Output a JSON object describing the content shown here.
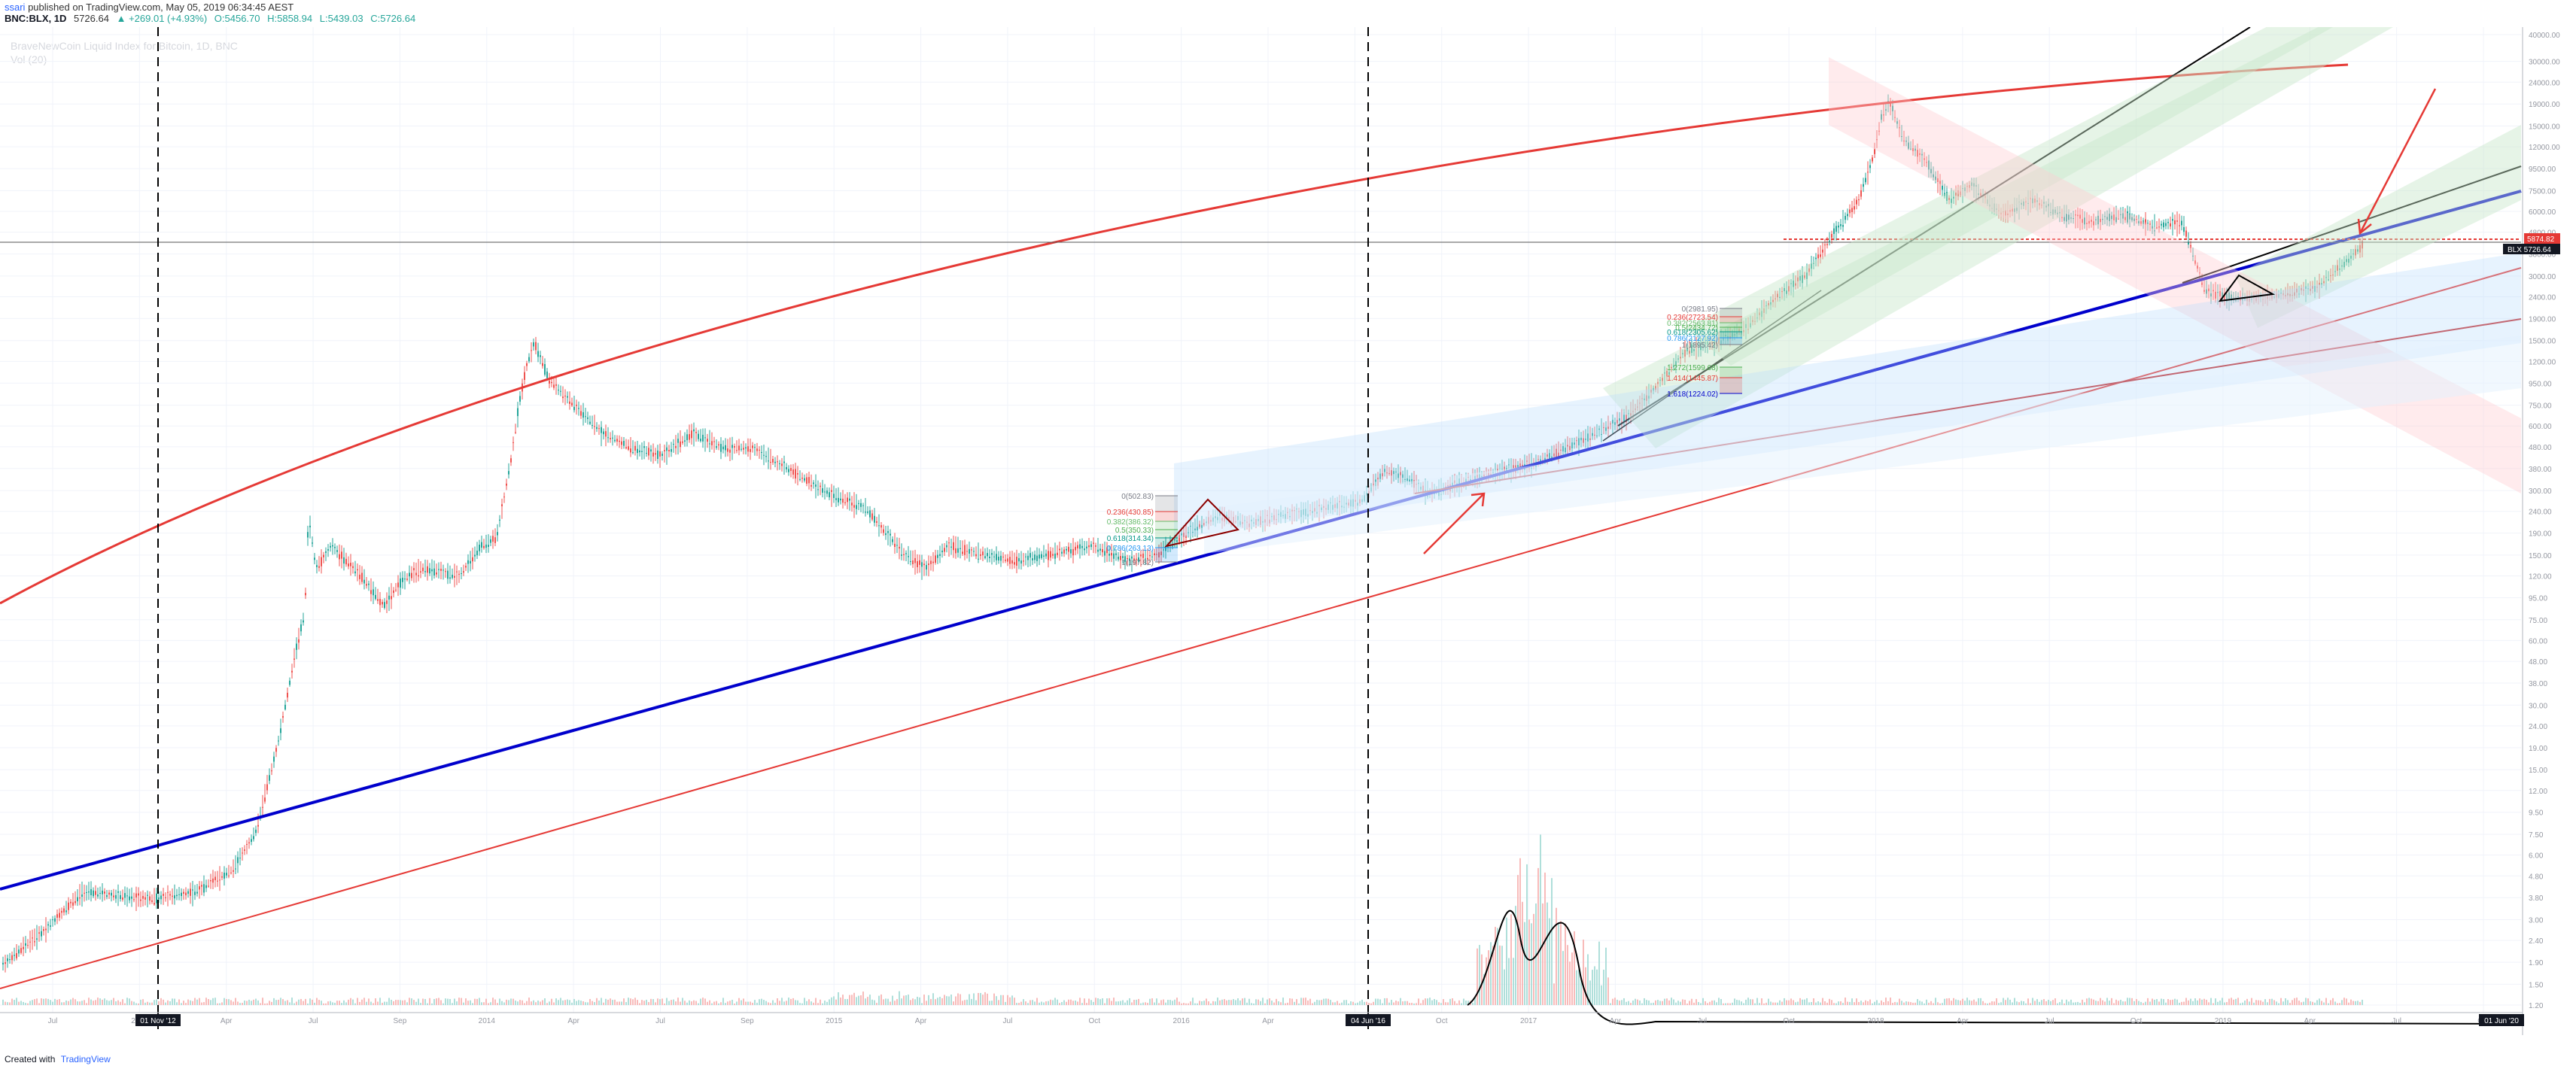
{
  "header": {
    "author": "ssari",
    "published": "published on TradingView.com, May 05, 2019 06:34:45 AEST",
    "symbol": "BNC:BLX, 1D",
    "last": "5726.64",
    "change": "▲ +269.01 (+4.93%)",
    "open": "O:5456.70",
    "high": "H:5858.94",
    "low": "L:5439.03",
    "close": "C:5726.64"
  },
  "watermark": {
    "line1": "BraveNewCoin Liquid Index for Bitcoin, 1D, BNC",
    "line2": "Vol (20)"
  },
  "footer": {
    "created": "Created with",
    "brand": "TradingView"
  },
  "colors": {
    "up": "#26a69a",
    "down": "#ef5350",
    "blue_line": "#0000cc",
    "red_line": "#e53935",
    "accent": "#2962ff"
  },
  "chart_data": {
    "type": "candlestick",
    "scale": "log",
    "grid": true,
    "y_ticks": [
      "40000.00",
      "30000.00",
      "24000.00",
      "19000.00",
      "15000.00",
      "12000.00",
      "9500.00",
      "7500.00",
      "6000.00",
      "4800.00",
      "3800.00",
      "3000.00",
      "2400.00",
      "1900.00",
      "1500.00",
      "1200.00",
      "950.00",
      "750.00",
      "600.00",
      "480.00",
      "380.00",
      "300.00",
      "240.00",
      "190.00",
      "150.00",
      "120.00",
      "95.00",
      "75.00",
      "60.00",
      "48.00",
      "38.00",
      "30.00",
      "24.00",
      "19.00",
      "15.00",
      "12.00",
      "9.50",
      "7.50",
      "6.00",
      "4.80",
      "3.80",
      "3.00",
      "2.40",
      "1.90",
      "1.50",
      "1.20"
    ],
    "x_ticks": [
      "Jul",
      "2013",
      "Apr",
      "Jul",
      "Sep",
      "2014",
      "Apr",
      "Jul",
      "Sep",
      "2015",
      "Apr",
      "Jul",
      "Oct",
      "2016",
      "Apr",
      "Jul",
      "Oct",
      "2017",
      "Apr",
      "Jul",
      "Oct",
      "2018",
      "Apr",
      "Jul",
      "Oct",
      "2019",
      "Apr",
      "Jul",
      "Oct"
    ],
    "x_highlight": [
      "01 Nov '12",
      "04 Jun '16",
      "01 Jun '20"
    ],
    "price_labels": [
      {
        "symbol": "",
        "value": "5874.82"
      },
      {
        "symbol": "BLX",
        "value": "5726.64"
      }
    ],
    "fib_2015": [
      "0(502.83)",
      "0.236(430.85)",
      "0.382(386.32)",
      "0.5(350.33)",
      "0.618(314.34)",
      "0.786(263.13)",
      "1(197.82)"
    ],
    "fib_2017_retrace": [
      "0(2981.95)",
      "0.236(2723.54)",
      "0.382(2563.81)",
      "0.5(2434.72)",
      "0.618(2305.62)",
      "0.786(2127.92)",
      "1(1895.42)"
    ],
    "fib_2017_ext": [
      "1.272(1599.68)",
      "1.414(1445.87)",
      "1.618(1224.02)"
    ]
  }
}
